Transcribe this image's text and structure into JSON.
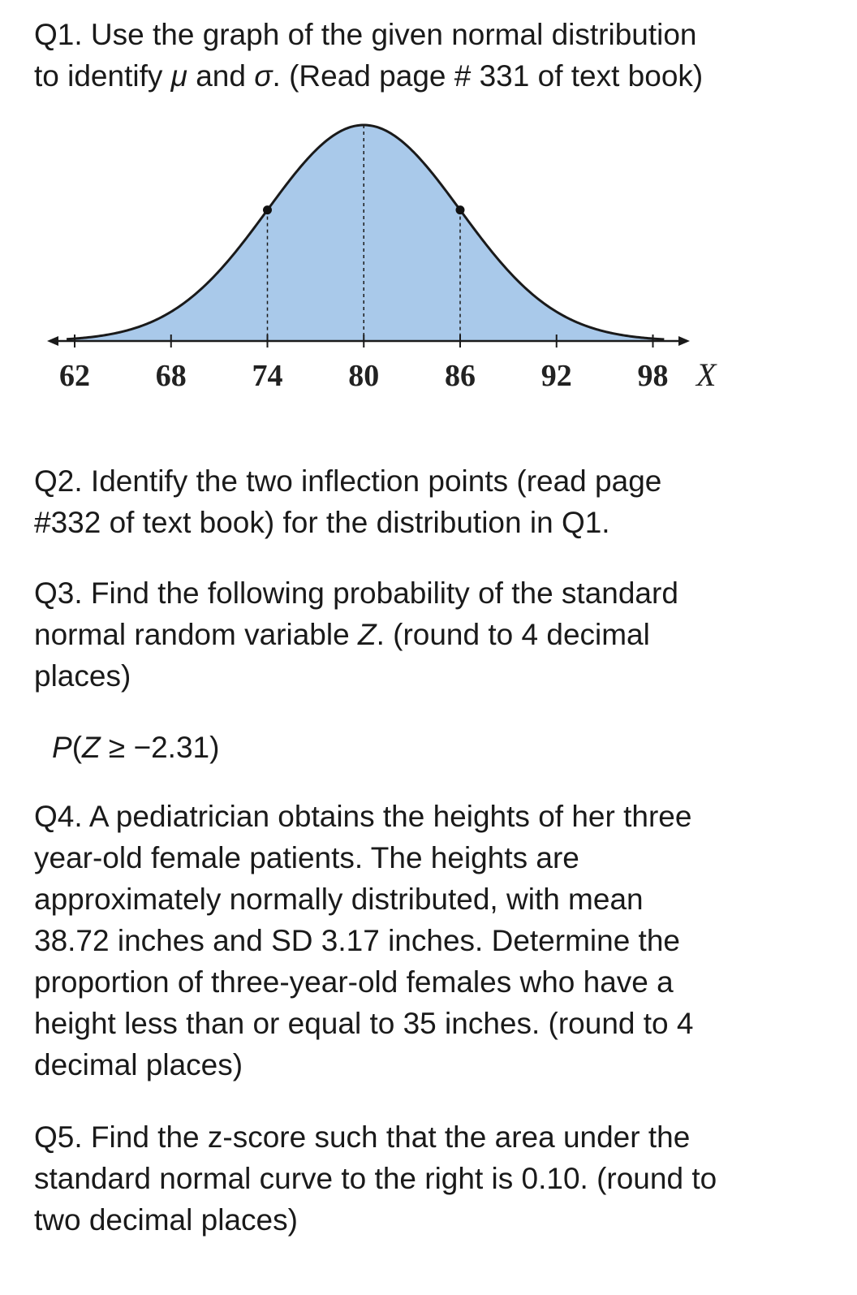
{
  "q1": {
    "line1": "Q1. Use the graph of the given normal distribution",
    "line2_prefix": "to identify ",
    "mu": "μ",
    "line2_mid": " and ",
    "sigma": "σ",
    "line2_suffix": ". (Read page # 331 of text book)"
  },
  "chart_data": {
    "type": "area",
    "mean": 80,
    "sd": 6,
    "xlim": [
      60,
      100
    ],
    "ticks": [
      "62",
      "68",
      "74",
      "80",
      "86",
      "92",
      "98"
    ],
    "tick_values": [
      62,
      68,
      74,
      80,
      86,
      92,
      98
    ],
    "inflection_points": [
      74,
      86
    ],
    "xlabel": "X",
    "fill_color": "#a9c9ea",
    "line_color": "#1a1a1a"
  },
  "q2": {
    "line1": "Q2. Identify the two inflection points (read page",
    "line2": "#332 of text book) for the distribution in Q1."
  },
  "q3": {
    "line1": "Q3. Find the following probability of the standard",
    "line2_prefix": "normal random variable ",
    "var": "Z",
    "line2_suffix": ". (round to  4 decimal",
    "line3": "places)",
    "expr_p": "P",
    "expr_open": "(",
    "expr_z": "Z",
    "expr_rest": " ≥ −2.31)"
  },
  "q4": {
    "line1": "Q4. A pediatrician obtains the heights of her three",
    "line2": "year-old female patients. The heights are",
    "line3": "approximately normally distributed, with  mean",
    "line4": "38.72 inches and SD 3.17 inches. Determine the",
    "line5": "proportion of three-year-old females who have a",
    "line6": "height less than or equal to 35 inches.  (round to  4",
    "line7": "decimal places)"
  },
  "q5": {
    "line1": "Q5. Find the z-score such that the area under the",
    "line2": "standard normal curve to the right is 0.10. (round to",
    "line3": "two decimal places)"
  }
}
